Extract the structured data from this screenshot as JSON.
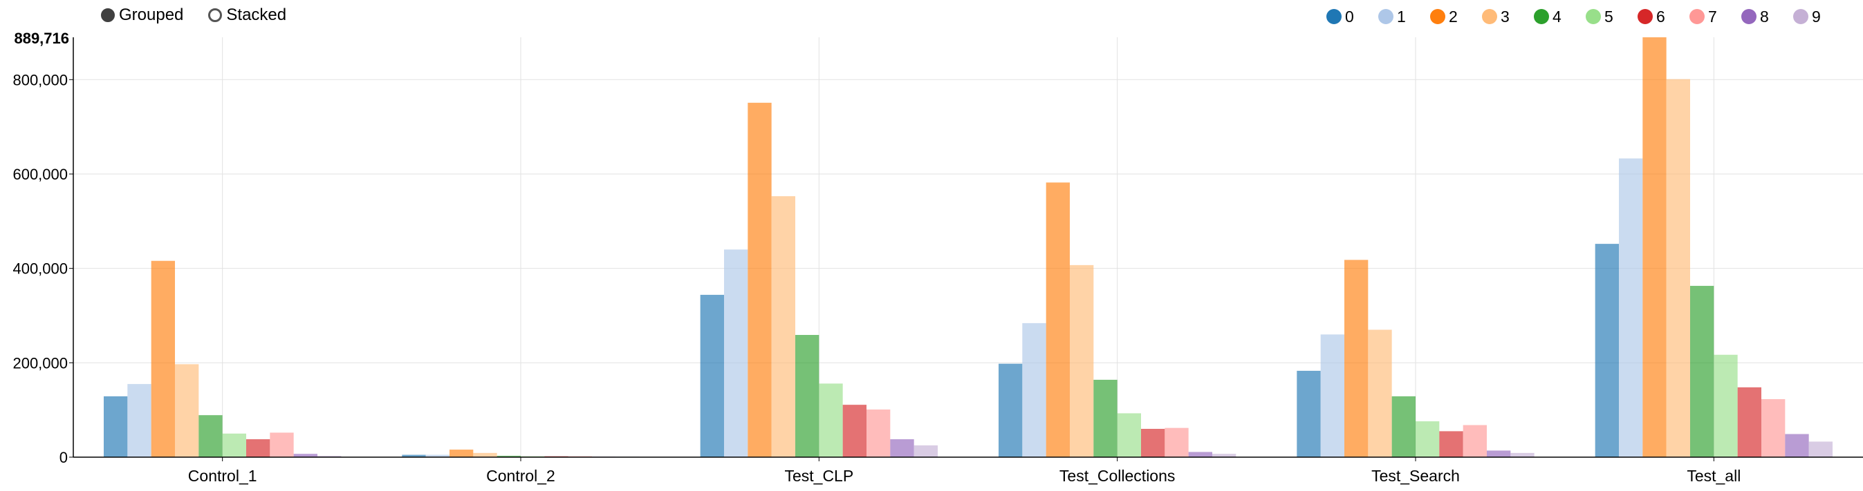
{
  "controls": {
    "grouped_label": "Grouped",
    "stacked_label": "Stacked",
    "selected": "grouped"
  },
  "chart_data": {
    "type": "bar",
    "mode": "grouped",
    "categories": [
      "Control_1",
      "Control_2",
      "Test_CLP",
      "Test_Collections",
      "Test_Search",
      "Test_all"
    ],
    "series": [
      {
        "name": "0",
        "color": "#1f77b4",
        "values": [
          129000,
          5000,
          344000,
          198000,
          183000,
          452000
        ]
      },
      {
        "name": "1",
        "color": "#aec7e8",
        "values": [
          155000,
          5000,
          440000,
          284000,
          260000,
          633000
        ]
      },
      {
        "name": "2",
        "color": "#ff7f0e",
        "values": [
          416000,
          16000,
          751000,
          582000,
          418000,
          889716
        ]
      },
      {
        "name": "3",
        "color": "#ffbb78",
        "values": [
          197000,
          9000,
          553000,
          407000,
          270000,
          801000
        ]
      },
      {
        "name": "4",
        "color": "#2ca02c",
        "values": [
          89000,
          3000,
          259000,
          164000,
          129000,
          363000
        ]
      },
      {
        "name": "5",
        "color": "#98df8a",
        "values": [
          50000,
          2000,
          156000,
          93000,
          76000,
          217000
        ]
      },
      {
        "name": "6",
        "color": "#d62728",
        "values": [
          38000,
          2000,
          111000,
          60000,
          55000,
          148000
        ]
      },
      {
        "name": "7",
        "color": "#ff9896",
        "values": [
          52000,
          2000,
          101000,
          62000,
          68000,
          123000
        ]
      },
      {
        "name": "8",
        "color": "#9467bd",
        "values": [
          7000,
          1000,
          38000,
          11000,
          14000,
          49000
        ]
      },
      {
        "name": "9",
        "color": "#c5b0d5",
        "values": [
          3000,
          1000,
          25000,
          7000,
          9000,
          33000
        ]
      }
    ],
    "y_ticks": [
      0,
      200000,
      400000,
      600000,
      800000
    ],
    "ylim": [
      0,
      889716
    ],
    "y_max_label": "889,716",
    "grid": true,
    "legend_position": "top-right"
  }
}
